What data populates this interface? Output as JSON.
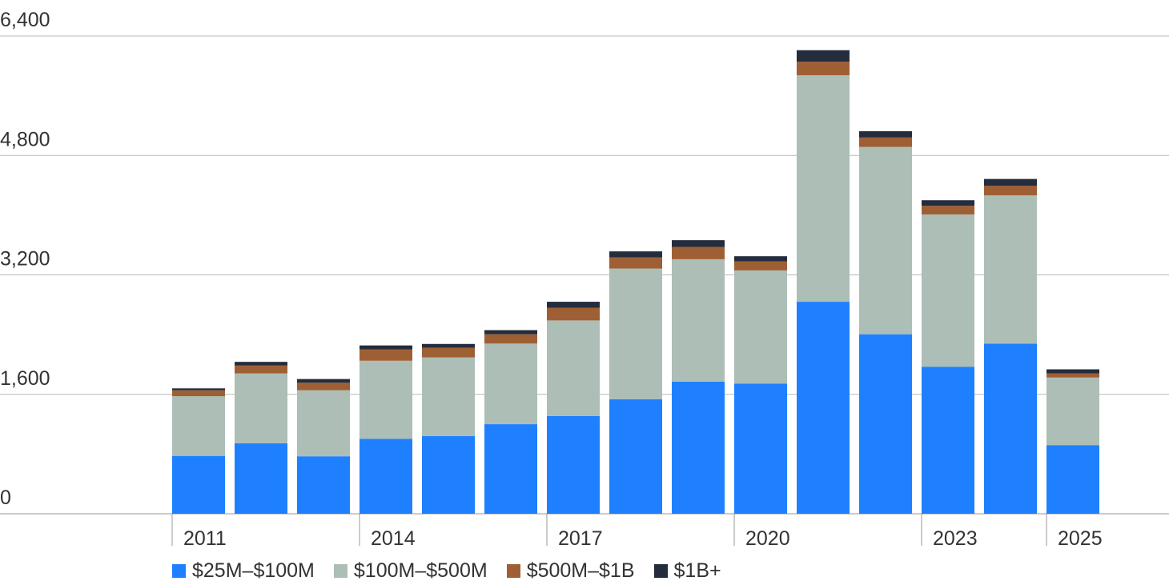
{
  "chart_data": {
    "type": "bar",
    "stacked": true,
    "title": "",
    "xlabel": "",
    "ylabel": "",
    "categories": [
      "2011",
      "2012",
      "2013",
      "2014",
      "2015",
      "2016",
      "2017",
      "2018",
      "2019",
      "2020",
      "2021",
      "2022",
      "2023",
      "2024",
      "2025"
    ],
    "x_tick_labels": [
      "2011",
      "2014",
      "2017",
      "2020",
      "2023",
      "2025"
    ],
    "ylim": [
      0,
      6400
    ],
    "y_ticks": [
      0,
      1600,
      3200,
      4800,
      6400
    ],
    "y_tick_labels": [
      "0",
      "1,600",
      "3,200",
      "4,800",
      "6,400"
    ],
    "grid": true,
    "legend_position": "bottom",
    "series": [
      {
        "name": "$25M–$100M",
        "color": "#1e80ff",
        "values": [
          775,
          945,
          770,
          1005,
          1040,
          1200,
          1310,
          1535,
          1770,
          1745,
          2840,
          2405,
          1970,
          2280,
          920
        ]
      },
      {
        "name": "$100M–$500M",
        "color": "#acbeb5",
        "values": [
          800,
          935,
          885,
          1045,
          1055,
          1080,
          1280,
          1750,
          1640,
          1515,
          3035,
          2510,
          2040,
          1985,
          905
        ]
      },
      {
        "name": "$500M–$1B",
        "color": "#9f5f34",
        "values": [
          80,
          105,
          100,
          150,
          130,
          125,
          170,
          150,
          165,
          120,
          180,
          125,
          115,
          130,
          55
        ]
      },
      {
        "name": "$1B+",
        "color": "#242d3d",
        "values": [
          25,
          50,
          50,
          55,
          50,
          55,
          80,
          80,
          90,
          70,
          155,
          85,
          75,
          90,
          55
        ]
      }
    ]
  }
}
